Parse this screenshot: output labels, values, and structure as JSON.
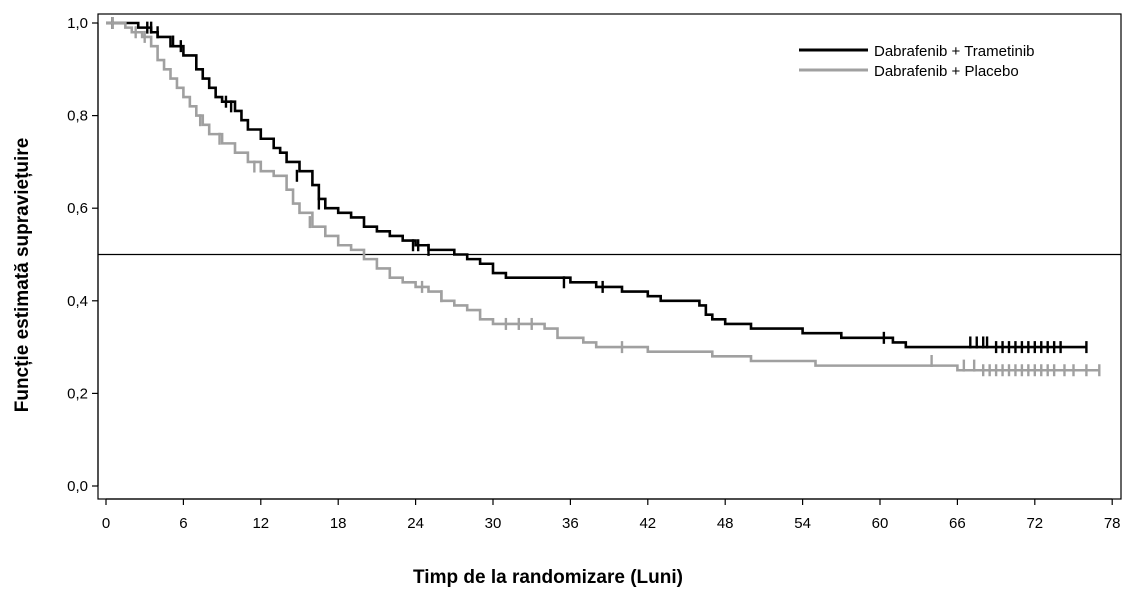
{
  "chart_data": {
    "type": "line",
    "title": "",
    "xlabel": "Timp de la randomizare (Luni)",
    "ylabel": "Funcție estimată supraviețuire",
    "xlim": [
      0,
      78
    ],
    "ylim": [
      0,
      1.0
    ],
    "x_ticks": [
      0,
      6,
      12,
      18,
      24,
      30,
      36,
      42,
      48,
      54,
      60,
      66,
      72,
      78
    ],
    "x_tick_labels": [
      "0",
      "6",
      "12",
      "18",
      "24",
      "30",
      "36",
      "42",
      "48",
      "54",
      "60",
      "66",
      "72",
      "78"
    ],
    "y_ticks": [
      0,
      0.2,
      0.4,
      0.6,
      0.8,
      1.0
    ],
    "y_tick_labels": [
      "0,0",
      "0,2",
      "0,4",
      "0,6",
      "0,8",
      "1,0"
    ],
    "reference_line_y": 0.5,
    "legend_position": "top-right",
    "grid": false,
    "series": [
      {
        "name": "Dabrafenib + Trametinib",
        "color": "#000000",
        "steps": [
          [
            0,
            1.0
          ],
          [
            2.5,
            0.99
          ],
          [
            3.5,
            0.98
          ],
          [
            4,
            0.97
          ],
          [
            5,
            0.95
          ],
          [
            6,
            0.93
          ],
          [
            7,
            0.9
          ],
          [
            7.5,
            0.88
          ],
          [
            8,
            0.86
          ],
          [
            8.5,
            0.84
          ],
          [
            9,
            0.83
          ],
          [
            10,
            0.81
          ],
          [
            10.5,
            0.79
          ],
          [
            11,
            0.77
          ],
          [
            12,
            0.75
          ],
          [
            13,
            0.73
          ],
          [
            13.5,
            0.72
          ],
          [
            14,
            0.7
          ],
          [
            15,
            0.68
          ],
          [
            16,
            0.65
          ],
          [
            16.5,
            0.62
          ],
          [
            17,
            0.6
          ],
          [
            18,
            0.59
          ],
          [
            19,
            0.58
          ],
          [
            20,
            0.56
          ],
          [
            21,
            0.55
          ],
          [
            22,
            0.54
          ],
          [
            23,
            0.53
          ],
          [
            24,
            0.52
          ],
          [
            25,
            0.51
          ],
          [
            27,
            0.5
          ],
          [
            28,
            0.49
          ],
          [
            29,
            0.48
          ],
          [
            30,
            0.46
          ],
          [
            31,
            0.45
          ],
          [
            36,
            0.44
          ],
          [
            38,
            0.43
          ],
          [
            40,
            0.42
          ],
          [
            42,
            0.41
          ],
          [
            43,
            0.4
          ],
          [
            46,
            0.39
          ],
          [
            46.5,
            0.37
          ],
          [
            47,
            0.36
          ],
          [
            48,
            0.35
          ],
          [
            50,
            0.34
          ],
          [
            54,
            0.33
          ],
          [
            57,
            0.32
          ],
          [
            61,
            0.31
          ],
          [
            62,
            0.3
          ],
          [
            76,
            0.3
          ]
        ],
        "censors": [
          [
            0.5,
            1.0
          ],
          [
            3.2,
            0.99
          ],
          [
            3.5,
            0.99
          ],
          [
            4.0,
            0.98
          ],
          [
            5.2,
            0.96
          ],
          [
            5.8,
            0.95
          ],
          [
            9.3,
            0.83
          ],
          [
            9.7,
            0.82
          ],
          [
            14.8,
            0.67
          ],
          [
            16.5,
            0.61
          ],
          [
            23.8,
            0.52
          ],
          [
            24.2,
            0.52
          ],
          [
            25.0,
            0.51
          ],
          [
            35.5,
            0.44
          ],
          [
            38.5,
            0.43
          ],
          [
            60.3,
            0.32
          ],
          [
            67.0,
            0.31
          ],
          [
            67.5,
            0.31
          ],
          [
            68.0,
            0.31
          ],
          [
            68.3,
            0.31
          ],
          [
            69.0,
            0.3
          ],
          [
            69.5,
            0.3
          ],
          [
            70.0,
            0.3
          ],
          [
            70.5,
            0.3
          ],
          [
            71.0,
            0.3
          ],
          [
            71.5,
            0.3
          ],
          [
            72.0,
            0.3
          ],
          [
            72.5,
            0.3
          ],
          [
            73.0,
            0.3
          ],
          [
            73.5,
            0.3
          ],
          [
            74.0,
            0.3
          ],
          [
            76.0,
            0.3
          ]
        ]
      },
      {
        "name": "Dabrafenib + Placebo",
        "color": "#a0a0a0",
        "steps": [
          [
            0,
            1.0
          ],
          [
            1.5,
            0.99
          ],
          [
            2,
            0.98
          ],
          [
            2.8,
            0.97
          ],
          [
            3.5,
            0.95
          ],
          [
            4,
            0.92
          ],
          [
            4.5,
            0.9
          ],
          [
            5,
            0.88
          ],
          [
            5.5,
            0.86
          ],
          [
            6,
            0.84
          ],
          [
            6.5,
            0.82
          ],
          [
            7,
            0.8
          ],
          [
            7.5,
            0.78
          ],
          [
            8,
            0.76
          ],
          [
            9,
            0.74
          ],
          [
            10,
            0.72
          ],
          [
            11,
            0.7
          ],
          [
            12,
            0.68
          ],
          [
            13,
            0.67
          ],
          [
            14,
            0.64
          ],
          [
            14.5,
            0.61
          ],
          [
            15,
            0.59
          ],
          [
            16,
            0.56
          ],
          [
            17,
            0.54
          ],
          [
            18,
            0.52
          ],
          [
            19,
            0.51
          ],
          [
            20,
            0.49
          ],
          [
            21,
            0.47
          ],
          [
            22,
            0.45
          ],
          [
            23,
            0.44
          ],
          [
            24,
            0.43
          ],
          [
            25,
            0.42
          ],
          [
            26,
            0.4
          ],
          [
            27,
            0.39
          ],
          [
            28,
            0.38
          ],
          [
            29,
            0.36
          ],
          [
            30,
            0.35
          ],
          [
            34,
            0.34
          ],
          [
            35,
            0.32
          ],
          [
            37,
            0.31
          ],
          [
            38,
            0.3
          ],
          [
            42,
            0.29
          ],
          [
            47,
            0.28
          ],
          [
            50,
            0.27
          ],
          [
            55,
            0.26
          ],
          [
            66,
            0.25
          ],
          [
            77,
            0.25
          ]
        ],
        "censors": [
          [
            0.5,
            1.0
          ],
          [
            2.3,
            0.98
          ],
          [
            3.0,
            0.97
          ],
          [
            7.3,
            0.79
          ],
          [
            8.8,
            0.75
          ],
          [
            11.5,
            0.69
          ],
          [
            15.8,
            0.57
          ],
          [
            24.5,
            0.43
          ],
          [
            26.0,
            0.41
          ],
          [
            31.0,
            0.35
          ],
          [
            32.0,
            0.35
          ],
          [
            33.0,
            0.35
          ],
          [
            40.0,
            0.3
          ],
          [
            64.0,
            0.27
          ],
          [
            66.5,
            0.26
          ],
          [
            67.3,
            0.26
          ],
          [
            68.0,
            0.25
          ],
          [
            68.5,
            0.25
          ],
          [
            69.0,
            0.25
          ],
          [
            69.5,
            0.25
          ],
          [
            70.0,
            0.25
          ],
          [
            70.5,
            0.25
          ],
          [
            71.0,
            0.25
          ],
          [
            71.5,
            0.25
          ],
          [
            72.0,
            0.25
          ],
          [
            72.5,
            0.25
          ],
          [
            73.0,
            0.25
          ],
          [
            73.5,
            0.25
          ],
          [
            74.3,
            0.25
          ],
          [
            75.0,
            0.25
          ],
          [
            76.0,
            0.25
          ],
          [
            77.0,
            0.25
          ]
        ]
      }
    ]
  }
}
